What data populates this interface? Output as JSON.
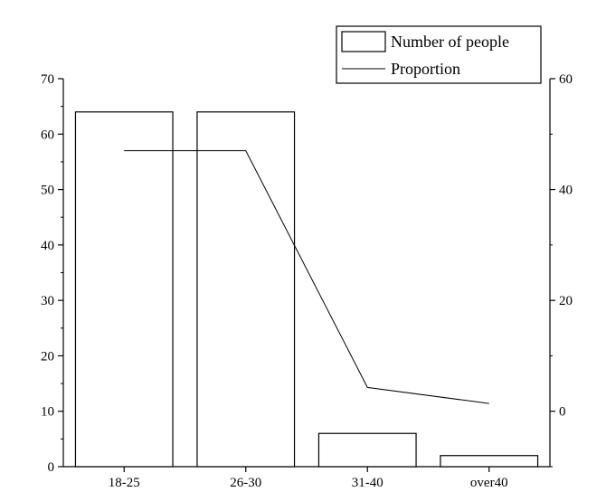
{
  "chart_data": {
    "type": "bar",
    "categories": [
      "18-25",
      "26-30",
      "31-40",
      "over40"
    ],
    "series": [
      {
        "name": "Number of people",
        "type": "bar",
        "axis": "left",
        "values": [
          64,
          64,
          6,
          2
        ]
      },
      {
        "name": "Proportion",
        "type": "line",
        "axis": "right",
        "values": [
          47,
          47,
          4.3,
          1.4
        ]
      }
    ],
    "y_left": {
      "ylim": [
        0,
        70
      ],
      "ticks": [
        0,
        10,
        20,
        30,
        40,
        50,
        60,
        70
      ]
    },
    "y_right": {
      "ylim": [
        -10,
        60
      ],
      "ticks": [
        0,
        20,
        40,
        60
      ]
    },
    "grid": false,
    "legend": "top-right",
    "colors": {
      "bar_stroke": "#000000",
      "bar_fill": "#ffffff",
      "line": "#000000"
    }
  }
}
